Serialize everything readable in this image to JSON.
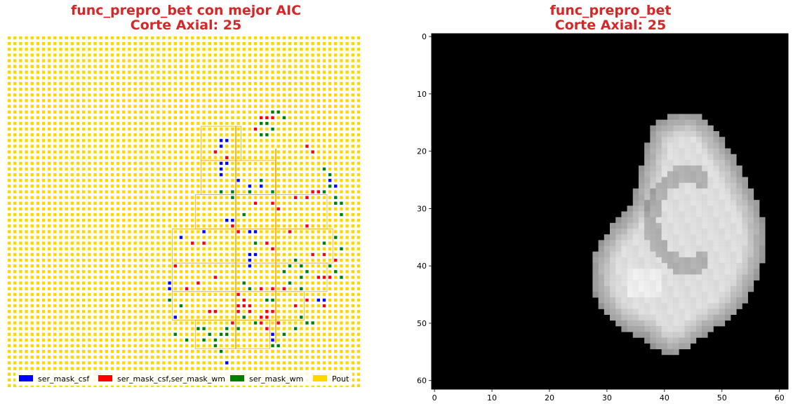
{
  "chart_data": [
    {
      "type": "heatmap",
      "title_lines": [
        "func_prepro_bet con mejor AIC",
        "Corte Axial: 25"
      ],
      "legend": {
        "placement": "lower-center",
        "items": [
          {
            "label": "ser_mask_csf",
            "color": "#0000ff"
          },
          {
            "label": "ser_mask_csf,ser_mask_wm",
            "color": "#ff0000"
          },
          {
            "label": "ser_mask_wm",
            "color": "#008000"
          },
          {
            "label": "Pout",
            "color": "#ffd700"
          }
        ]
      },
      "grid_size": [
        62,
        62
      ],
      "background_color": "#ffd700",
      "colored_voxels": {
        "ser_mask_csf": [
          [
            37,
            18
          ],
          [
            38,
            18
          ],
          [
            37,
            19
          ],
          [
            37,
            22
          ],
          [
            38,
            22
          ],
          [
            37,
            23
          ],
          [
            37,
            24
          ],
          [
            40,
            25
          ],
          [
            42,
            26
          ],
          [
            44,
            26
          ],
          [
            34,
            34
          ],
          [
            38,
            32
          ],
          [
            39,
            32
          ],
          [
            42,
            34
          ],
          [
            43,
            34
          ],
          [
            30,
            35
          ],
          [
            42,
            38
          ],
          [
            43,
            38
          ],
          [
            42,
            39
          ],
          [
            42,
            40
          ],
          [
            28,
            43
          ],
          [
            28,
            44
          ],
          [
            55,
            46
          ],
          [
            54,
            46
          ],
          [
            29,
            49
          ],
          [
            38,
            57
          ],
          [
            46,
            52
          ],
          [
            46,
            53
          ],
          [
            55,
            36
          ],
          [
            57,
            26
          ],
          [
            56,
            25
          ],
          [
            52,
            33
          ]
        ],
        "ser_mask_csf,ser_mask_wm": [
          [
            44,
            14
          ],
          [
            45,
            14
          ],
          [
            46,
            14
          ],
          [
            43,
            16
          ],
          [
            52,
            19
          ],
          [
            53,
            20
          ],
          [
            36,
            20
          ],
          [
            38,
            21
          ],
          [
            50,
            28
          ],
          [
            52,
            28
          ],
          [
            53,
            27
          ],
          [
            54,
            27
          ],
          [
            43,
            29
          ],
          [
            46,
            29
          ],
          [
            47,
            30
          ],
          [
            39,
            33
          ],
          [
            40,
            34
          ],
          [
            49,
            34
          ],
          [
            52,
            33
          ],
          [
            32,
            36
          ],
          [
            34,
            36
          ],
          [
            45,
            36
          ],
          [
            46,
            37
          ],
          [
            55,
            38
          ],
          [
            53,
            38
          ],
          [
            54,
            42
          ],
          [
            55,
            42
          ],
          [
            56,
            42
          ],
          [
            57,
            39
          ],
          [
            33,
            43
          ],
          [
            36,
            42
          ],
          [
            40,
            45
          ],
          [
            41,
            46
          ],
          [
            40,
            47
          ],
          [
            41,
            47
          ],
          [
            42,
            47
          ],
          [
            40,
            48
          ],
          [
            42,
            48
          ],
          [
            35,
            48
          ],
          [
            36,
            48
          ],
          [
            45,
            48
          ],
          [
            46,
            48
          ],
          [
            44,
            49
          ],
          [
            45,
            49
          ],
          [
            47,
            50
          ],
          [
            39,
            50
          ],
          [
            44,
            50
          ],
          [
            45,
            51
          ],
          [
            50,
            47
          ],
          [
            52,
            46
          ],
          [
            31,
            44
          ],
          [
            29,
            40
          ],
          [
            46,
            44
          ],
          [
            44,
            44
          ],
          [
            48,
            44
          ],
          [
            55,
            47
          ]
        ],
        "ser_mask_wm": [
          [
            46,
            13
          ],
          [
            47,
            13
          ],
          [
            44,
            15
          ],
          [
            45,
            15
          ],
          [
            46,
            16
          ],
          [
            44,
            17
          ],
          [
            45,
            17
          ],
          [
            48,
            14
          ],
          [
            37,
            27
          ],
          [
            39,
            27
          ],
          [
            42,
            27
          ],
          [
            39,
            28
          ],
          [
            46,
            27
          ],
          [
            44,
            25
          ],
          [
            41,
            31
          ],
          [
            55,
            27
          ],
          [
            56,
            26
          ],
          [
            56,
            24
          ],
          [
            55,
            23
          ],
          [
            57,
            28
          ],
          [
            58,
            29
          ],
          [
            57,
            29
          ],
          [
            58,
            31
          ],
          [
            50,
            39
          ],
          [
            49,
            40
          ],
          [
            51,
            40
          ],
          [
            52,
            41
          ],
          [
            51,
            42
          ],
          [
            49,
            43
          ],
          [
            51,
            44
          ],
          [
            41,
            43
          ],
          [
            42,
            44
          ],
          [
            45,
            46
          ],
          [
            46,
            46
          ],
          [
            41,
            49
          ],
          [
            43,
            50
          ],
          [
            38,
            51
          ],
          [
            40,
            51
          ],
          [
            37,
            52
          ],
          [
            38,
            52
          ],
          [
            35,
            52
          ],
          [
            36,
            53
          ],
          [
            34,
            51
          ],
          [
            33,
            51
          ],
          [
            36,
            54
          ],
          [
            37,
            55
          ],
          [
            46,
            54
          ],
          [
            47,
            54
          ],
          [
            48,
            52
          ],
          [
            50,
            51
          ],
          [
            52,
            50
          ],
          [
            53,
            50
          ],
          [
            51,
            49
          ],
          [
            30,
            47
          ],
          [
            28,
            46
          ],
          [
            31,
            53
          ],
          [
            34,
            53
          ],
          [
            29,
            52
          ],
          [
            58,
            42
          ],
          [
            57,
            41
          ],
          [
            56,
            40
          ],
          [
            55,
            36
          ],
          [
            58,
            37
          ],
          [
            57,
            35
          ],
          [
            48,
            41
          ],
          [
            43,
            36
          ]
        ]
      }
    },
    {
      "type": "heatmap",
      "title_lines": [
        "func_prepro_bet",
        "Corte Axial: 25"
      ],
      "colormap": "gray",
      "grid_size": [
        62,
        62
      ],
      "xlim": [
        -0.5,
        61.5
      ],
      "ylim": [
        61.5,
        -0.5
      ],
      "xticks": [
        0,
        10,
        20,
        30,
        40,
        50,
        60
      ],
      "yticks": [
        0,
        10,
        20,
        30,
        40,
        50,
        60
      ],
      "brain_outline": [
        [
          43,
          14
        ],
        [
          46,
          14
        ],
        [
          49,
          16
        ],
        [
          51,
          19
        ],
        [
          53,
          22
        ],
        [
          55,
          26
        ],
        [
          57,
          30
        ],
        [
          58,
          34
        ],
        [
          58,
          38
        ],
        [
          57,
          42
        ],
        [
          55,
          46
        ],
        [
          53,
          49
        ],
        [
          50,
          51
        ],
        [
          47,
          53
        ],
        [
          45,
          55
        ],
        [
          42,
          56
        ],
        [
          39,
          55
        ],
        [
          37,
          53
        ],
        [
          34,
          52
        ],
        [
          31,
          50
        ],
        [
          29,
          47
        ],
        [
          28,
          44
        ],
        [
          28,
          40
        ],
        [
          29,
          37
        ],
        [
          31,
          34
        ],
        [
          33,
          32
        ],
        [
          35,
          29
        ],
        [
          36,
          25
        ],
        [
          37,
          21
        ],
        [
          38,
          17
        ],
        [
          40,
          15
        ]
      ]
    }
  ]
}
